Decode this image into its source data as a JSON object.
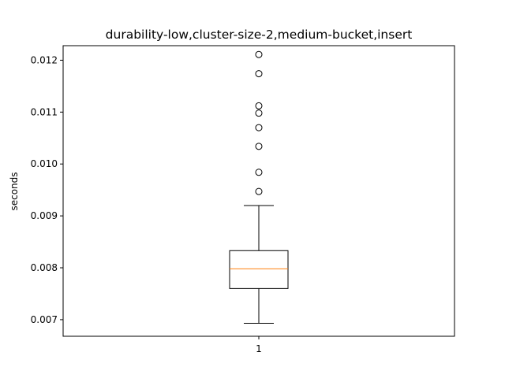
{
  "chart_data": {
    "type": "boxplot",
    "title": "durability-low,cluster-size-2,medium-bucket,insert",
    "xlabel": "",
    "ylabel": "seconds",
    "categories": [
      "1"
    ],
    "ylim": [
      0.00668,
      0.01228
    ],
    "yticks": [
      0.007,
      0.008,
      0.009,
      0.01,
      0.011,
      0.012
    ],
    "ytick_labels": [
      "0.007",
      "0.008",
      "0.009",
      "0.010",
      "0.011",
      "0.012"
    ],
    "boxes": [
      {
        "category": "1",
        "whisker_low": 0.00693,
        "q1": 0.0076,
        "median": 0.00798,
        "q3": 0.00833,
        "whisker_high": 0.0092,
        "outliers": [
          0.00947,
          0.00984,
          0.01034,
          0.0107,
          0.01098,
          0.01112,
          0.01174,
          0.01211
        ]
      }
    ],
    "grid": false,
    "colors": {
      "box": "#000000",
      "median": "#ff7f0e",
      "outlier": "#000000"
    }
  }
}
